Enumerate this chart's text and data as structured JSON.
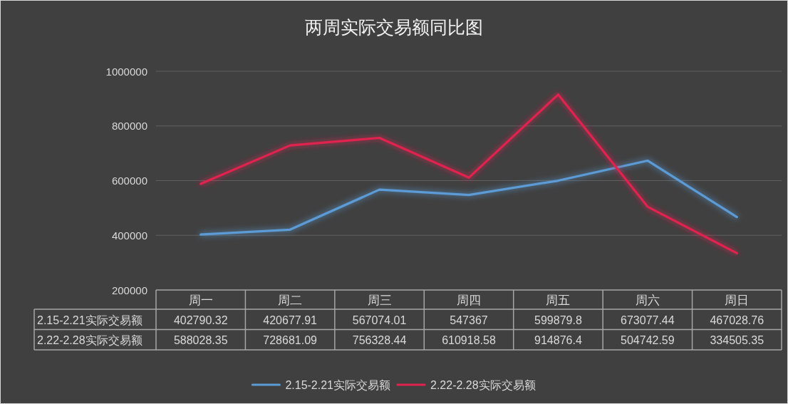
{
  "chart_data": {
    "type": "line",
    "title": "两周实际交易额同比图",
    "categories": [
      "周一",
      "周二",
      "周三",
      "周四",
      "周五",
      "周六",
      "周日"
    ],
    "series": [
      {
        "name": "2.15-2.21实际交易额",
        "color": "#5b9bd5",
        "values": [
          402790.32,
          420677.91,
          567074.01,
          547367,
          599879.8,
          673077.44,
          467028.76
        ]
      },
      {
        "name": "2.22-2.28实际交易额",
        "color": "#e0224f",
        "values": [
          588028.35,
          728681.09,
          756328.44,
          610918.58,
          914876.4,
          504742.59,
          334505.35
        ]
      }
    ],
    "ylim": [
      200000,
      1000000
    ],
    "yticks": [
      200000,
      400000,
      600000,
      800000,
      1000000
    ],
    "grid": "y",
    "legend": "bottom",
    "data_labels": true
  }
}
